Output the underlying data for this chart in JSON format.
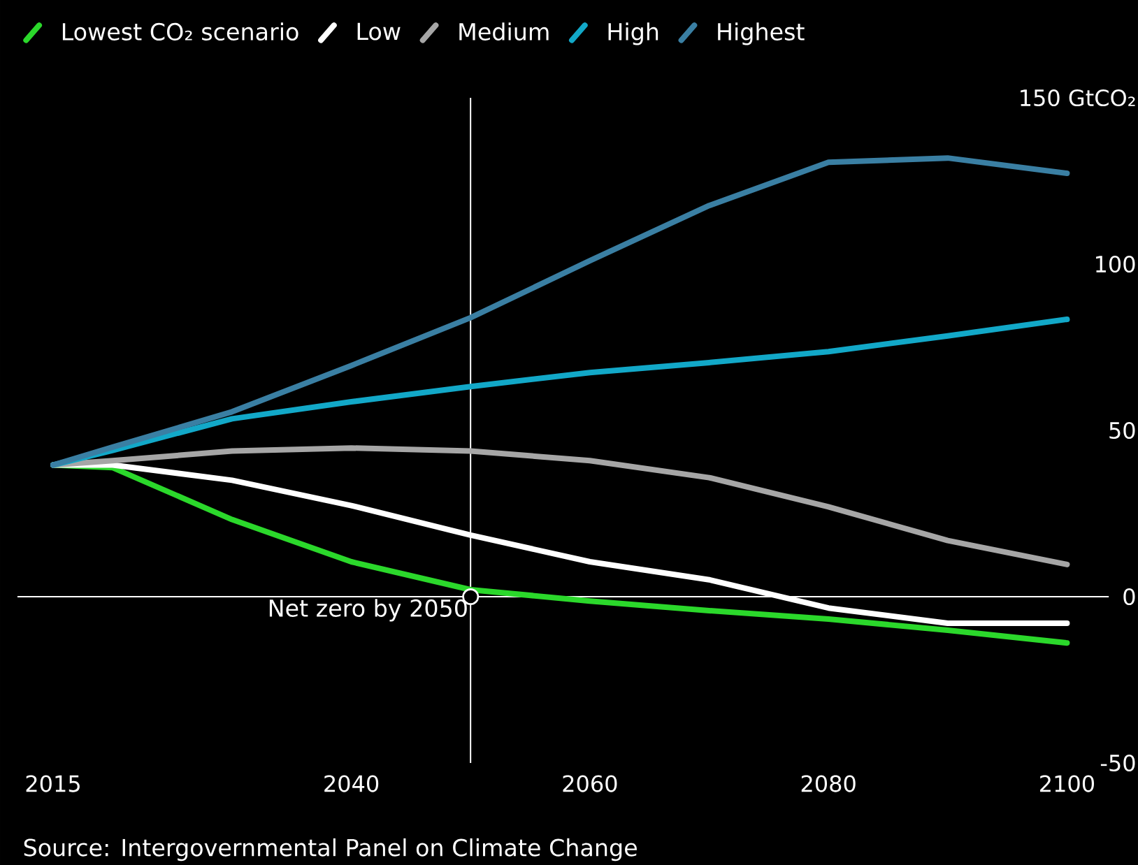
{
  "chart_data": {
    "type": "line",
    "x": [
      2015,
      2020,
      2030,
      2040,
      2050,
      2060,
      2070,
      2080,
      2090,
      2100
    ],
    "series": [
      {
        "name": "Lowest CO₂ scenario",
        "color": "#2bd82b",
        "values": [
          39.6,
          38.8,
          23.2,
          10.5,
          2.1,
          -1.3,
          -4.2,
          -6.7,
          -10.1,
          -13.9
        ]
      },
      {
        "name": "Low",
        "color": "#ffffff",
        "values": [
          39.6,
          39.6,
          35,
          27.4,
          18.5,
          10.5,
          5.1,
          -3.4,
          -8,
          -8
        ]
      },
      {
        "name": "Medium",
        "color": "#a6a6a6",
        "values": [
          39.6,
          40.9,
          43.8,
          44.7,
          43.8,
          40.9,
          35.8,
          27,
          16.9,
          9.7
        ]
      },
      {
        "name": "High",
        "color": "#12a8c8",
        "values": [
          39.6,
          44,
          53.5,
          58.6,
          63.2,
          67.4,
          70.4,
          73.7,
          78.4,
          83.4
        ]
      },
      {
        "name": "Highest",
        "color": "#3a7fa3",
        "values": [
          39.6,
          45,
          55.6,
          69.5,
          83.9,
          101,
          117.6,
          130.6,
          131.9,
          127.3
        ]
      }
    ],
    "xlim": [
      2012,
      2106
    ],
    "xticks": [
      2015,
      2040,
      2060,
      2080,
      2100
    ],
    "ylim": [
      -50,
      150
    ],
    "yticks": [
      {
        "value": 150,
        "label": "150 GtCO₂"
      },
      100,
      50,
      0,
      -50
    ],
    "ref_lines": [
      {
        "axis": "x",
        "value": 2050,
        "color": "#ffffff"
      },
      {
        "axis": "y",
        "value": 0,
        "color": "#ffffff"
      }
    ],
    "annotations": [
      {
        "text": "Net zero by 2050",
        "x": 2050,
        "y": 0
      },
      "Source: Intergovernmental Panel on Climate Change"
    ],
    "legend": "top"
  }
}
